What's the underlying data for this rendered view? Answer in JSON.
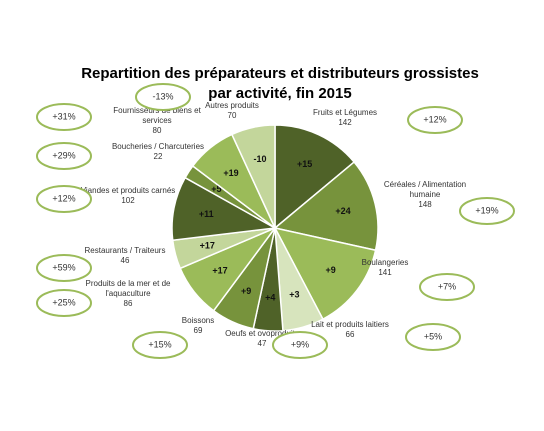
{
  "chart_data": {
    "type": "pie",
    "title": "Repartition des préparateurs et distributeurs grossistes par activité, fin 2015",
    "categories": [
      "Fruits et Légumes",
      "Céréales / Alimentation humaine",
      "Boulangeries",
      "Lait et produits laitiers",
      "Oeufs et ovoproduits",
      "Boissons",
      "Produits de la mer et de l'aquaculture",
      "Restaurants / Traiteurs",
      "Viandes et produits carnés",
      "Boucheries / Charcuteries",
      "Fournisseurs de biens et services",
      "Autres produits"
    ],
    "values": [
      142,
      148,
      141,
      66,
      47,
      69,
      86,
      46,
      102,
      22,
      80,
      70
    ],
    "colors": [
      "#4f6228",
      "#77933c",
      "#9bbb59",
      "#d7e4bd",
      "#4f6228",
      "#77933c",
      "#9bbb59",
      "#c3d69b",
      "#4f6228",
      "#77933c",
      "#9bbb59",
      "#c3d69b"
    ],
    "changes": [
      15,
      24,
      9,
      3,
      4,
      9,
      17,
      17,
      11,
      5,
      19,
      -10
    ],
    "change_labels": [
      "+15",
      "+24",
      "+9",
      "+3",
      "+4",
      "+9",
      "+17",
      "+17",
      "+11",
      "+5",
      "+19",
      "-10"
    ],
    "growth": [
      12,
      19,
      7,
      5,
      9,
      15,
      25,
      59,
      12,
      29,
      31,
      -13
    ],
    "growth_labels": [
      "+12%",
      "+19%",
      "+7%",
      "+5%",
      "+9%",
      "+15%",
      "+25%",
      "+59%",
      "+12%",
      "+29%",
      "+31%",
      "-13%"
    ],
    "oval_color": "#9bbb59"
  }
}
